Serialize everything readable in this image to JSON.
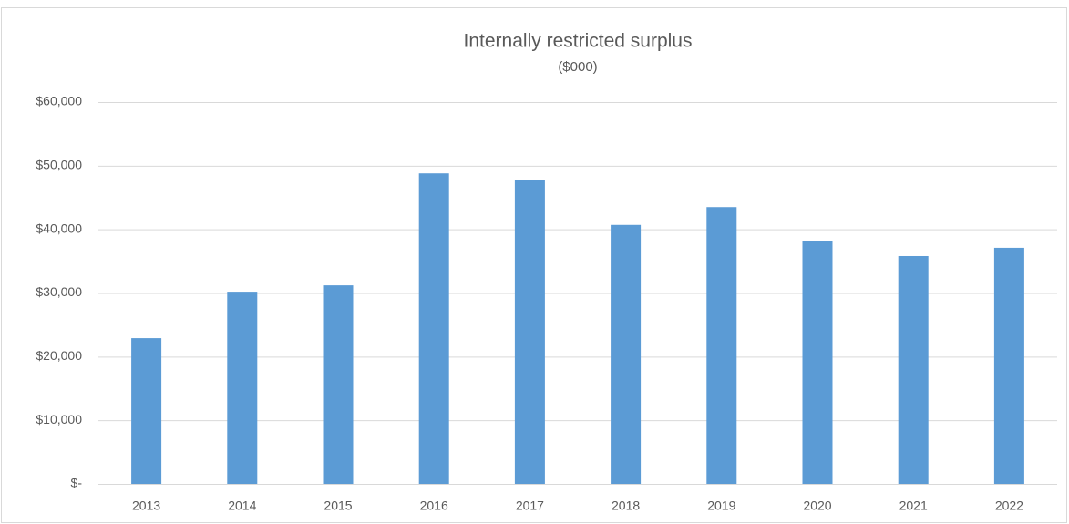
{
  "chart_data": {
    "type": "bar",
    "title": "Internally restricted surplus",
    "subtitle": "($000)",
    "categories": [
      "2013",
      "2014",
      "2015",
      "2016",
      "2017",
      "2018",
      "2019",
      "2020",
      "2021",
      "2022"
    ],
    "values": [
      22900,
      30200,
      31200,
      48800,
      47700,
      40700,
      43500,
      38200,
      35800,
      37100
    ],
    "color": "#5b9bd5",
    "ylim": [
      0,
      60000
    ],
    "yticks": [
      {
        "value": 0,
        "label": "$-"
      },
      {
        "value": 10000,
        "label": "$10,000"
      },
      {
        "value": 20000,
        "label": "$20,000"
      },
      {
        "value": 30000,
        "label": "$30,000"
      },
      {
        "value": 40000,
        "label": "$40,000"
      },
      {
        "value": 50000,
        "label": "$50,000"
      },
      {
        "value": 60000,
        "label": "$60,000"
      }
    ],
    "grid": true
  }
}
